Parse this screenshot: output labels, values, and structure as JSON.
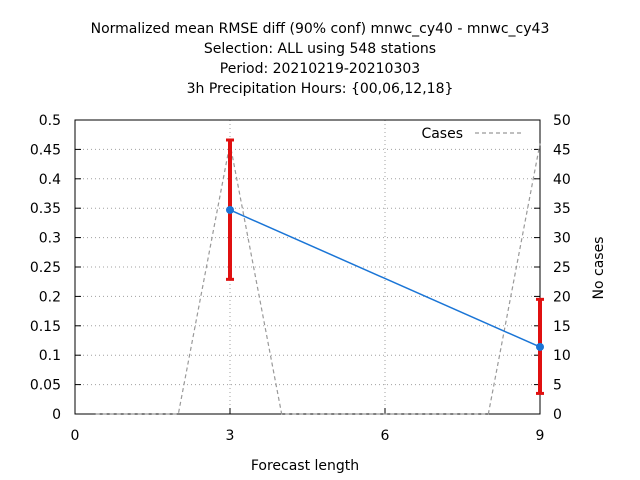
{
  "chart_data": {
    "type": "line",
    "title": [
      "Normalized mean RMSE diff (90% conf) mnwc_cy40 - mnwc_cy43",
      "Selection: ALL using   548 stations",
      "Period: 20210219-20210303",
      "3h Precipitation   Hours: {00,06,12,18}"
    ],
    "xlabel": "Forecast length",
    "ylabel": "",
    "y2label": "No cases",
    "xlim": [
      0,
      9
    ],
    "ylim": [
      0,
      0.5
    ],
    "y2lim": [
      0,
      50
    ],
    "xticks": [
      0,
      3,
      6,
      9
    ],
    "yticks": [
      0,
      0.05,
      0.1,
      0.15,
      0.2,
      0.25,
      0.3,
      0.35,
      0.4,
      0.45,
      0.5
    ],
    "y2ticks": [
      0,
      5,
      10,
      15,
      20,
      25,
      30,
      35,
      40,
      45,
      50
    ],
    "grid": true,
    "legend_position": "top-right",
    "series": [
      {
        "name": "",
        "color": "#1a75d6",
        "x": [
          3,
          9
        ],
        "y": [
          0.347,
          0.114
        ],
        "error_low": [
          0.229,
          0.035
        ],
        "error_high": [
          0.466,
          0.195
        ],
        "error_color": "#e01010"
      },
      {
        "name": "Cases",
        "axis": "y2",
        "style": "dashed",
        "color": "#999999",
        "x": [
          0.4,
          2,
          3,
          4,
          8,
          9
        ],
        "y": [
          0,
          0,
          46,
          0,
          0,
          46
        ]
      }
    ]
  }
}
